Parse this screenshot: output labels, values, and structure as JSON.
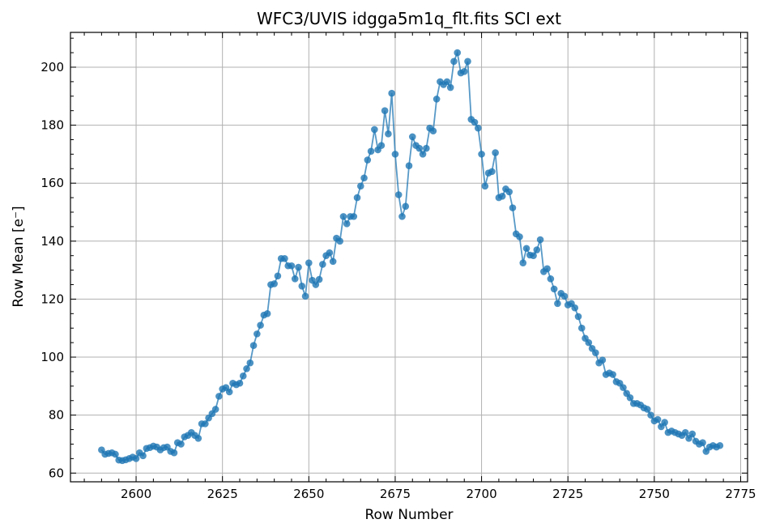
{
  "chart_data": {
    "type": "line",
    "title": "WFC3/UVIS idgga5m1q_flt.fits SCI ext",
    "xlabel": "Row Number",
    "ylabel": "Row Mean [e⁻]",
    "xlim": [
      2581,
      2777
    ],
    "ylim": [
      57,
      212
    ],
    "xticks": [
      2600,
      2625,
      2650,
      2675,
      2700,
      2725,
      2750,
      2775
    ],
    "yticks": [
      60,
      80,
      100,
      120,
      140,
      160,
      180,
      200
    ],
    "grid": true,
    "color": "#1f77b4",
    "x": [
      2590,
      2591,
      2592,
      2593,
      2594,
      2595,
      2596,
      2597,
      2598,
      2599,
      2600,
      2601,
      2602,
      2603,
      2604,
      2605,
      2606,
      2607,
      2608,
      2609,
      2610,
      2611,
      2612,
      2613,
      2614,
      2615,
      2616,
      2617,
      2618,
      2619,
      2620,
      2621,
      2622,
      2623,
      2624,
      2625,
      2626,
      2627,
      2628,
      2629,
      2630,
      2631,
      2632,
      2633,
      2634,
      2635,
      2636,
      2637,
      2638,
      2639,
      2640,
      2641,
      2642,
      2643,
      2644,
      2645,
      2646,
      2647,
      2648,
      2649,
      2650,
      2651,
      2652,
      2653,
      2654,
      2655,
      2656,
      2657,
      2658,
      2659,
      2660,
      2661,
      2662,
      2663,
      2664,
      2665,
      2666,
      2667,
      2668,
      2669,
      2670,
      2671,
      2672,
      2673,
      2674,
      2675,
      2676,
      2677,
      2678,
      2679,
      2680,
      2681,
      2682,
      2683,
      2684,
      2685,
      2686,
      2687,
      2688,
      2689,
      2690,
      2691,
      2692,
      2693,
      2694,
      2695,
      2696,
      2697,
      2698,
      2699,
      2700,
      2701,
      2702,
      2703,
      2704,
      2705,
      2706,
      2707,
      2708,
      2709,
      2710,
      2711,
      2712,
      2713,
      2714,
      2715,
      2716,
      2717,
      2718,
      2719,
      2720,
      2721,
      2722,
      2723,
      2724,
      2725,
      2726,
      2727,
      2728,
      2729,
      2730,
      2731,
      2732,
      2733,
      2734,
      2735,
      2736,
      2737,
      2738,
      2739,
      2740,
      2741,
      2742,
      2743,
      2744,
      2745,
      2746,
      2747,
      2748,
      2749,
      2750,
      2751,
      2752,
      2753,
      2754,
      2755,
      2756,
      2757,
      2758,
      2759,
      2760,
      2761,
      2762,
      2763,
      2764,
      2765,
      2766,
      2767,
      2768,
      2769
    ],
    "values": [
      68,
      66.5,
      66.8,
      67,
      66.5,
      64.5,
      64.3,
      64.6,
      65,
      65.5,
      65,
      67,
      66,
      68.5,
      68.8,
      69.3,
      69,
      68,
      68.8,
      69,
      67.5,
      67,
      70.5,
      70,
      72.5,
      73,
      74,
      73,
      72,
      77,
      77,
      79,
      80.5,
      82,
      86.5,
      89,
      89.5,
      88,
      91,
      90.5,
      91,
      93.5,
      96,
      98,
      104,
      108,
      111,
      114.5,
      115,
      125,
      125.3,
      128,
      134,
      134,
      131.5,
      131.5,
      127,
      131,
      124.5,
      121,
      132.5,
      126.5,
      125,
      126.8,
      132,
      135,
      136,
      133,
      141,
      140,
      148.5,
      146,
      148.5,
      148.5,
      155,
      159,
      161.8,
      168,
      171,
      178.5,
      171.5,
      173,
      185,
      177,
      191,
      170,
      156,
      148.5,
      152,
      166,
      176,
      173,
      172,
      170,
      172,
      179,
      178,
      189,
      195,
      194,
      195,
      193,
      202,
      205,
      198,
      198.5,
      202,
      182,
      181,
      179,
      170,
      159,
      163.5,
      164,
      170.5,
      155,
      155.5,
      158,
      157,
      151.5,
      142.5,
      141.5,
      132.5,
      137.5,
      135.2,
      135,
      137,
      140.5,
      129.5,
      130.5,
      127,
      123.5,
      118.5,
      122,
      121,
      118,
      118.5,
      117,
      114,
      110,
      106.5,
      105,
      103,
      101.5,
      98,
      99,
      94,
      94.5,
      94,
      91.5,
      91,
      89.5,
      87.5,
      86,
      84,
      84,
      83.5,
      82.5,
      82,
      80,
      78,
      78.5,
      76,
      77.5,
      74,
      74.5,
      74,
      73.5,
      73,
      74,
      72,
      73.5,
      71,
      70,
      70.5,
      67.5,
      69,
      69.5,
      69,
      69.5
    ]
  }
}
